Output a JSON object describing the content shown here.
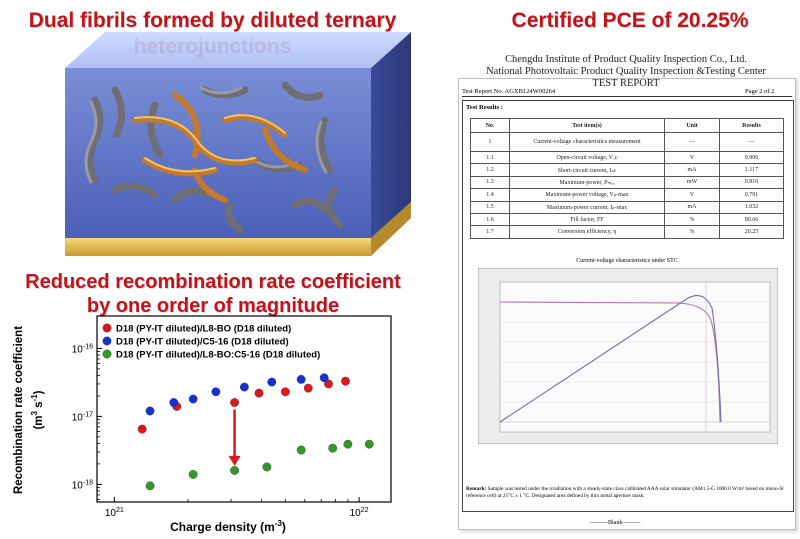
{
  "headings": {
    "left_title": "Dual fibrils formed by diluted ternary heterojunctions",
    "right_title": "Certified PCE of 20.25%",
    "mid_title": "Reduced recombination rate coefficient by one order of magnitude"
  },
  "colors": {
    "heading_red": "#c0141c",
    "series_red": "#e0141c",
    "series_blue": "#1432d8",
    "series_green": "#2e9a28"
  },
  "chart_data": {
    "type": "scatter",
    "xlabel": "Charge density (m⁻³)",
    "ylabel": "Recombination rate coefficient (m³ s⁻¹)",
    "x_scale": "log",
    "y_scale": "log",
    "xlim": [
      8.5e+20,
      1.35e+22
    ],
    "ylim": [
      5.5e-19,
      3e-16
    ],
    "x_ticks": [
      {
        "v": 1e+21,
        "base": "10",
        "exp": "21"
      },
      {
        "v": 1e+22,
        "base": "10",
        "exp": "22"
      }
    ],
    "y_ticks": [
      {
        "v": 1e-16,
        "base": "10",
        "exp": "-16"
      },
      {
        "v": 1e-17,
        "base": "10",
        "exp": "-17"
      },
      {
        "v": 1e-18,
        "base": "10",
        "exp": "-18"
      }
    ],
    "legend_position": "top-left",
    "series": [
      {
        "name": "D18 (PY-IT diluted)/L8-BO (D18 diluted)",
        "color": "#e0141c",
        "x": [
          1.3e+21,
          1.8e+21,
          3.1e+21,
          3.9e+21,
          5e+21,
          6.2e+21,
          7.5e+21,
          8.8e+21
        ],
        "y": [
          6.5e-18,
          1.4e-17,
          1.6e-17,
          2.2e-17,
          2.3e-17,
          2.6e-17,
          3e-17,
          3.3e-17
        ]
      },
      {
        "name": "D18 (PY-IT diluted)/C5-16 (D18 diluted)",
        "color": "#1432d8",
        "x": [
          1.4e+21,
          1.75e+21,
          2.1e+21,
          2.6e+21,
          3.4e+21,
          4.4e+21,
          5.8e+21,
          7.2e+21
        ],
        "y": [
          1.2e-17,
          1.6e-17,
          1.8e-17,
          2.3e-17,
          2.7e-17,
          3.2e-17,
          3.5e-17,
          3.7e-17
        ]
      },
      {
        "name": "D18 (PY-IT diluted)/L8-BO:C5-16 (D18 diluted)",
        "color": "#2e9a28",
        "x": [
          1.4e+21,
          2.1e+21,
          3.1e+21,
          4.2e+21,
          5.8e+21,
          7.8e+21,
          9e+21,
          1.1e+22
        ],
        "y": [
          9.5e-19,
          1.4e-18,
          1.6e-18,
          1.8e-18,
          3.2e-18,
          3.4e-18,
          3.9e-18,
          3.9e-18
        ]
      }
    ],
    "annotation": {
      "type": "arrow",
      "color": "#e0141c",
      "from": [
        3.1e+21,
        1.6e-17
      ],
      "to": [
        3.1e+21,
        2e-18
      ]
    }
  },
  "report": {
    "institute": "Chengdu Institute of Product Quality Inspection Co., Ltd.",
    "center": "National Photovoltaic Product Quality Inspection &Testing Center",
    "doc_type": "TEST REPORT",
    "report_no": "Test Report No. AGXB124W00264",
    "page": "Page 2 of 2",
    "results_label": "Test Results :",
    "columns": [
      "No.",
      "Test item(s)",
      "Unit",
      "Results"
    ],
    "rows": [
      {
        "no": "1",
        "item": "Current-voltage characteristics measurement",
        "unit": "—",
        "result": "—"
      },
      {
        "no": "1.1",
        "item": "Open-circuit voltage, Vₒc",
        "unit": "V",
        "result": "0.906"
      },
      {
        "no": "1.2",
        "item": "Short-circuit current, Iₛc",
        "unit": "mA",
        "result": "1.117"
      },
      {
        "no": "1.3",
        "item": "Maximum-power, Pₘₐₓ",
        "unit": "mW",
        "result": "0.816"
      },
      {
        "no": "1.4",
        "item": "Maximum-power voltage, Vₚ-max",
        "unit": "V",
        "result": "0.791"
      },
      {
        "no": "1.5",
        "item": "Maximum-power current, Iₚ-max",
        "unit": "mA",
        "result": "1.032"
      },
      {
        "no": "1.6",
        "item": "Fill factor, FF",
        "unit": "%",
        "result": "80.66"
      },
      {
        "no": "1.7",
        "item": "Conversion efficiency, η",
        "unit": "%",
        "result": "20.25"
      }
    ],
    "iv_title": "Current-voltage characteristics under STC",
    "remark_label": "Remark:",
    "remark": "Sample was tested under the irradiation with a steady-state class calibrated AAA solar simulator (AM1.5-G 1000.0 W/m² based on mono-Si reference cell) at 25°C ± 1 °C. Designated area defined by thin metal aperture mask.",
    "blank": "———Blank———"
  }
}
